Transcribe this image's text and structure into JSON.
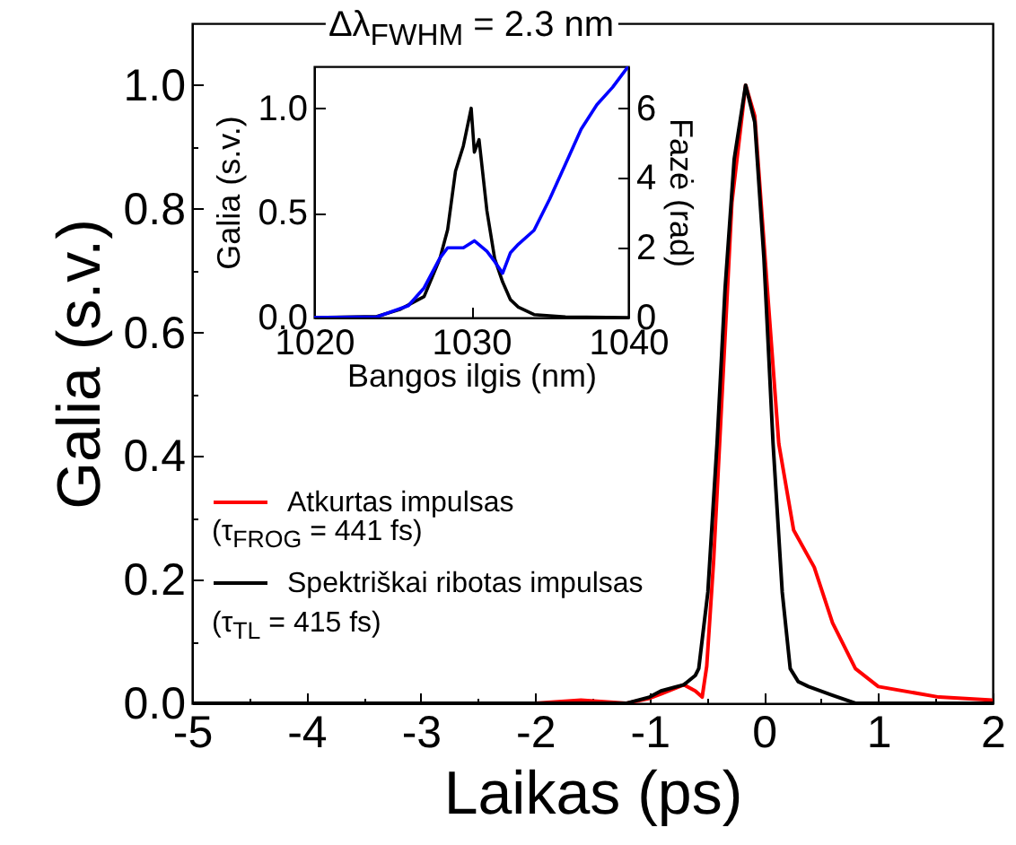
{
  "chart_data": [
    {
      "type": "line",
      "xlabel": "Laikas (ps)",
      "ylabel": "Galia (s.v.)",
      "xlim": [
        -5,
        2
      ],
      "ylim": [
        0,
        1.1
      ],
      "xticks": [
        -5,
        {
          "value": -4.5,
          "label": null
        },
        -4,
        {
          "value": -3.5,
          "label": null
        },
        -3,
        {
          "value": -2.5,
          "label": null
        },
        -2,
        {
          "value": -1.5,
          "label": null
        },
        -1,
        {
          "value": -0.5,
          "label": null
        },
        0,
        {
          "value": 0.5,
          "label": null
        },
        1,
        {
          "value": 1.5,
          "label": null
        },
        2
      ],
      "yticks": [
        {
          "value": 0,
          "label": "0.0"
        },
        {
          "value": 0.1,
          "label": null
        },
        {
          "value": 0.2,
          "label": "0.2"
        },
        {
          "value": 0.3,
          "label": null
        },
        {
          "value": 0.4,
          "label": "0.4"
        },
        {
          "value": 0.5,
          "label": null
        },
        {
          "value": 0.6,
          "label": "0.6"
        },
        {
          "value": 0.7,
          "label": null
        },
        {
          "value": 0.8,
          "label": "0.8"
        },
        {
          "value": 0.9,
          "label": null
        },
        {
          "value": 1,
          "label": "1.0"
        }
      ],
      "legend": "bottom left",
      "grid": false,
      "annotations": [
        "(τ$_{FROG}$ = 441 fs)",
        "(τ$_{TL}$ = 415 fs)"
      ],
      "series": [
        {
          "name": "Atkurtas impulsas",
          "color": "#ff0000",
          "x": [
            -5,
            -2,
            -1.6,
            -1.2,
            -1.0,
            -0.9,
            -0.7,
            -0.6,
            -0.54,
            -0.5,
            -0.44,
            -0.36,
            -0.28,
            -0.16,
            -0.08,
            0.03,
            0.13,
            0.26,
            0.44,
            0.6,
            0.8,
            1.0,
            1.53,
            2
          ],
          "values": [
            0,
            0,
            0.005,
            0,
            0.008,
            0.015,
            0.03,
            0.02,
            0.01,
            0.06,
            0.23,
            0.52,
            0.81,
            1.0,
            0.95,
            0.67,
            0.42,
            0.28,
            0.22,
            0.13,
            0.056,
            0.027,
            0.01,
            0.005
          ]
        },
        {
          "name": "Spektriškai ribotas impulsas",
          "color": "#000000",
          "x": [
            -5,
            -2,
            -1.2,
            -1,
            -0.9,
            -0.7,
            -0.6,
            -0.57,
            -0.49,
            -0.41,
            -0.34,
            -0.26,
            -0.16,
            -0.08,
            0,
            0.08,
            0.16,
            0.23,
            0.3,
            0.39,
            0.6,
            0.8,
            1,
            2
          ],
          "values": [
            0,
            0,
            0,
            0.01,
            0.02,
            0.03,
            0.045,
            0.056,
            0.18,
            0.42,
            0.67,
            0.88,
            1.0,
            0.94,
            0.72,
            0.42,
            0.18,
            0.056,
            0.035,
            0.027,
            0.013,
            0,
            0,
            0
          ]
        }
      ]
    },
    {
      "type": "line",
      "title": "Δλ$_{FWHM}$ = 2.3 nm",
      "xlabel": "Bangos ilgis (nm)",
      "ylabel": "Galia (s.v.)",
      "y2label": "Fazė (rad)",
      "xlim": [
        1020,
        1040
      ],
      "ylim": [
        0,
        1.2
      ],
      "y2lim": [
        0,
        7.2
      ],
      "xticks": [
        1020,
        1030,
        1040
      ],
      "yticks": [
        {
          "value": 0,
          "label": "0.0"
        },
        {
          "value": 0.5,
          "label": "0.5"
        },
        {
          "value": 1,
          "label": "1.0"
        }
      ],
      "y2ticks": [
        0,
        2,
        4,
        6
      ],
      "grid": false,
      "series": [
        {
          "color": "#000000",
          "x": [
            1020,
            1024,
            1025.5,
            1027,
            1028,
            1028.5,
            1029,
            1029.5,
            1030,
            1030.2,
            1030.5,
            1031,
            1031.5,
            1032,
            1032.5,
            1033,
            1034,
            1036,
            1040
          ],
          "values": [
            0,
            0.005,
            0.04,
            0.1,
            0.28,
            0.42,
            0.7,
            0.82,
            1.0,
            0.79,
            0.85,
            0.51,
            0.28,
            0.17,
            0.085,
            0.05,
            0.014,
            0.003,
            0
          ]
        },
        {
          "color": "#0000ff",
          "axis": "y2",
          "x": [
            1020,
            1024,
            1026,
            1027,
            1028,
            1028.5,
            1029.5,
            1030.2,
            1031,
            1031.5,
            1032,
            1032.5,
            1033,
            1034,
            1035,
            1036,
            1037,
            1038,
            1039,
            1040
          ],
          "values": [
            0,
            0.02,
            0.34,
            0.85,
            1.7,
            2.0,
            2.0,
            2.2,
            1.9,
            1.6,
            1.27,
            1.86,
            2.1,
            2.5,
            3.4,
            4.4,
            5.4,
            6.1,
            6.6,
            7.2
          ]
        }
      ]
    }
  ]
}
